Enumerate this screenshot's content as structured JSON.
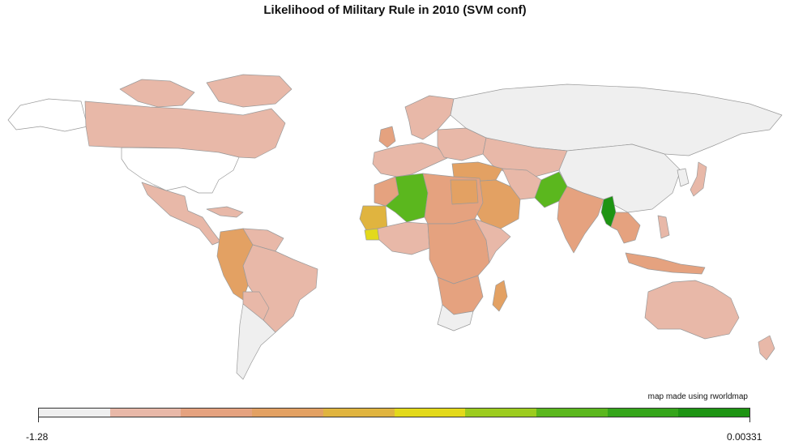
{
  "title": "Likelihood of Military Rule in 2010 (SVM conf)",
  "credit": "map made using rworldmap",
  "legend": {
    "min_label": "-1.28",
    "max_label": "0.00331",
    "colors": [
      "#efefef",
      "#e8b8a8",
      "#e5a27f",
      "#e3a163",
      "#e0b43f",
      "#e3d91b",
      "#9ccc1f",
      "#5bb71e",
      "#35a51b",
      "#1e9413"
    ]
  },
  "palette": {
    "c0": "#efefef",
    "c1": "#e8b8a8",
    "c2": "#e5a27f",
    "c3": "#e3a163",
    "c4": "#e0b43f",
    "c5": "#e3d91b",
    "c7": "#5bb71e",
    "c9": "#1e9413",
    "nodata": "#ffffff"
  }
}
